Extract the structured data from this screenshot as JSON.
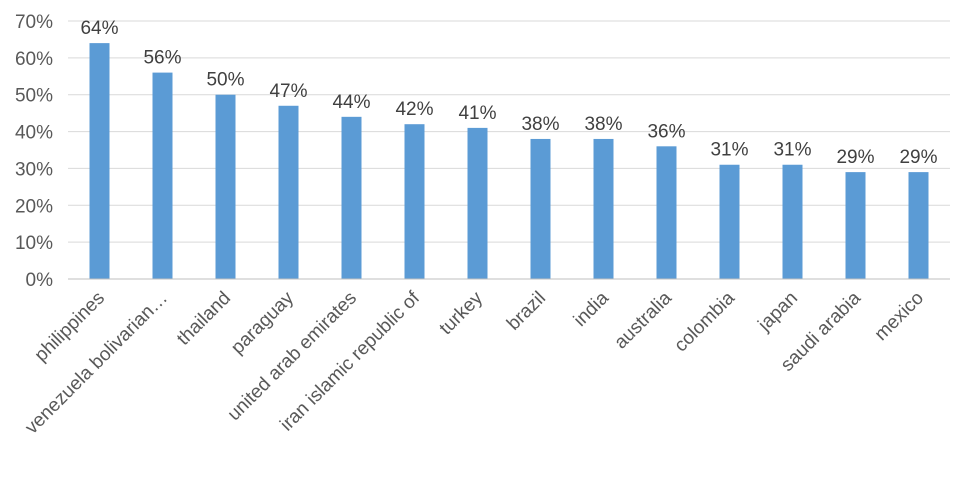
{
  "chart_data": {
    "type": "bar",
    "categories": [
      "philippines",
      "venezuela  bolivarian…",
      "thailand",
      "paraguay",
      "united arab emirates",
      "iran  islamic republic of",
      "turkey",
      "brazil",
      "india",
      "australia",
      "colombia",
      "japan",
      "saudi arabia",
      "mexico"
    ],
    "values": [
      64,
      56,
      50,
      47,
      44,
      42,
      41,
      38,
      38,
      36,
      31,
      31,
      29,
      29
    ],
    "data_labels": [
      "64%",
      "56%",
      "50%",
      "47%",
      "44%",
      "42%",
      "41%",
      "38%",
      "38%",
      "36%",
      "31%",
      "31%",
      "29%",
      "29%"
    ],
    "ylim": [
      0,
      70
    ],
    "yticks": [
      0,
      10,
      20,
      30,
      40,
      50,
      60,
      70
    ],
    "ytick_labels": [
      "0%",
      "10%",
      "20%",
      "30%",
      "40%",
      "50%",
      "60%",
      "70%"
    ],
    "grid": true,
    "legend": "none",
    "bar_color": "#5b9bd5"
  }
}
